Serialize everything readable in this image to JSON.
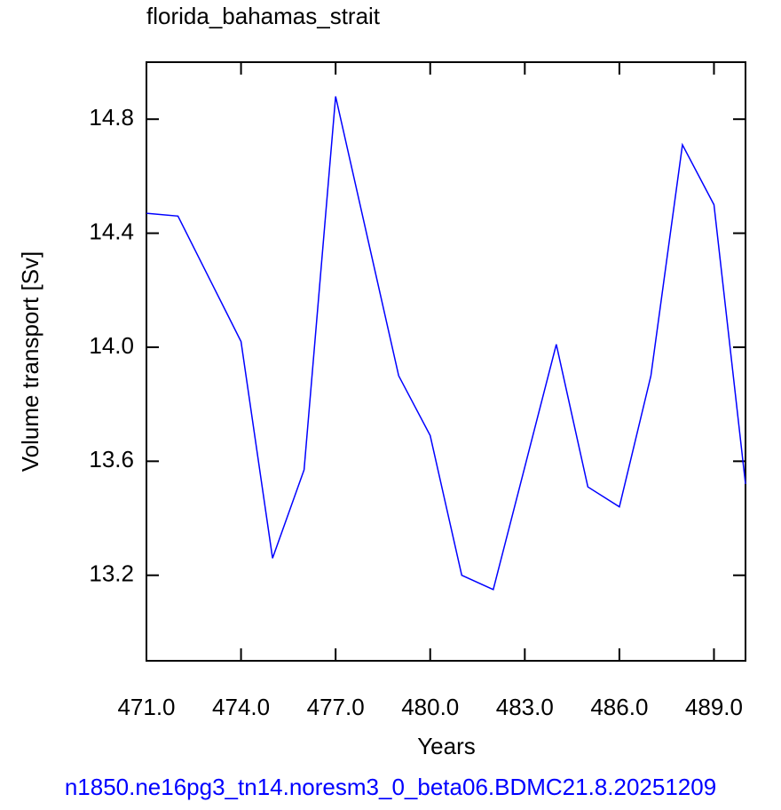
{
  "chart_data": {
    "type": "line",
    "title": "florida_bahamas_strait",
    "x_label": "Years",
    "y_label": "Volume transport [Sv]",
    "footer": "n1850.ne16pg3_tn14.noresm3_0_beta06.BDMC21.8.20251209",
    "x": [
      471,
      472,
      473,
      474,
      475,
      476,
      477,
      478,
      479,
      480,
      481,
      482,
      483,
      484,
      485,
      486,
      487,
      488,
      489,
      490
    ],
    "series": [
      {
        "name": "florida_bahamas_strait",
        "color": "#0000ff",
        "values": [
          14.47,
          14.46,
          14.24,
          14.02,
          13.26,
          13.57,
          14.88,
          14.39,
          13.9,
          13.69,
          13.2,
          13.15,
          13.58,
          14.01,
          13.51,
          13.44,
          13.9,
          14.71,
          14.5,
          13.52
        ]
      }
    ],
    "xlim": [
      471,
      490
    ],
    "xticks": [
      {
        "value": 471,
        "label": "471.0"
      },
      {
        "value": 474,
        "label": "474.0"
      },
      {
        "value": 477,
        "label": "477.0"
      },
      {
        "value": 480,
        "label": "480.0"
      },
      {
        "value": 483,
        "label": "483.0"
      },
      {
        "value": 486,
        "label": "486.0"
      },
      {
        "value": 489,
        "label": "489.0"
      }
    ],
    "ylim": [
      12.9,
      15.0
    ],
    "yticks": [
      13.2,
      13.6,
      {
        "value": 14,
        "label": "14.0"
      },
      14.4,
      14.8
    ]
  }
}
